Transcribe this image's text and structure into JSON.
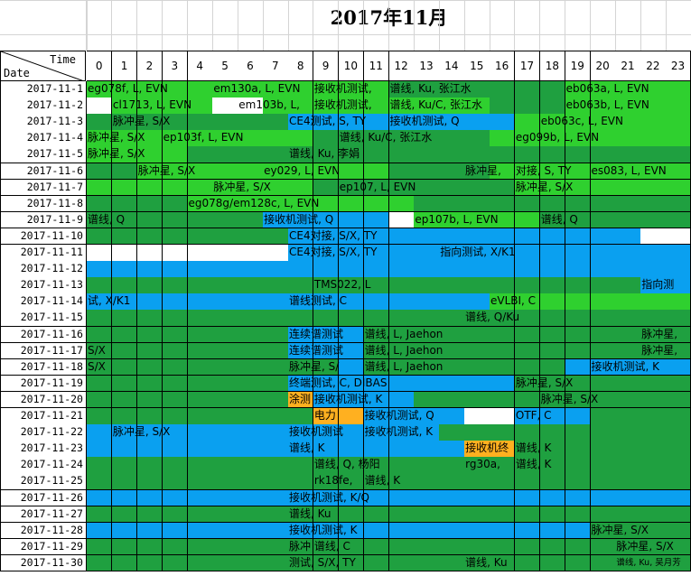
{
  "title": "2017年11月",
  "header": {
    "time_label": "Time",
    "date_label": "Date"
  },
  "colors": {
    "dark_green": "#1fa040",
    "bright_green": "#2fd02f",
    "blue": "#0aa0f0",
    "orange": "#ffb020",
    "white": "#ffffff"
  },
  "hours": [
    "0",
    "1",
    "2",
    "3",
    "4",
    "5",
    "6",
    "7",
    "8",
    "9",
    "10",
    "11",
    "12",
    "13",
    "14",
    "15",
    "16",
    "17",
    "18",
    "19",
    "20",
    "21",
    "22",
    "23"
  ],
  "rows": [
    {
      "date": "2017-11-1",
      "cells": "BBBBBBBBBBBBGGGGGGGBBBBB",
      "events": [
        {
          "s": 0,
          "e": 5,
          "t": "eg078f, L, EVN"
        },
        {
          "s": 5,
          "e": 9,
          "t": "em130a, L, EVN"
        },
        {
          "s": 9,
          "e": 12,
          "t": "接收机测试,"
        },
        {
          "s": 12,
          "e": 19,
          "t": "谱线, Ku, 张江水"
        },
        {
          "s": 19,
          "e": 24,
          "t": "eb063a, L, EVN"
        }
      ]
    },
    {
      "date": "2017-11-2",
      "cells": "WBBBBWWBBBBBBBBBGGGBBBBB",
      "events": [
        {
          "s": 1,
          "e": 6,
          "t": "cl1713, L, EVN"
        },
        {
          "s": 6,
          "e": 9,
          "t": "em103b, L,"
        },
        {
          "s": 9,
          "e": 12,
          "t": "接收机测试,"
        },
        {
          "s": 12,
          "e": 19,
          "t": "谱线, Ku/C, 张江水"
        },
        {
          "s": 19,
          "e": 24,
          "t": "eb063b, L, EVN"
        }
      ]
    },
    {
      "date": "2017-11-3",
      "cells": "GGGGGGGGLLLLLLLLLBBBBBBB",
      "events": [
        {
          "s": 1,
          "e": 8,
          "t": "脉冲星, S/X"
        },
        {
          "s": 8,
          "e": 12,
          "t": "CE4测试, S, TY"
        },
        {
          "s": 12,
          "e": 18,
          "t": "接收机测试, Q"
        },
        {
          "s": 18,
          "e": 24,
          "t": "eb063c, L, EVN"
        }
      ]
    },
    {
      "date": "2017-11-4",
      "cells": "BBBBBBBBBGGGGGGGBBBBBBBB",
      "events": [
        {
          "s": 0,
          "e": 3,
          "t": "脉冲星, S/X"
        },
        {
          "s": 3,
          "e": 9,
          "t": "ep103f, L, EVN"
        },
        {
          "s": 10,
          "e": 16,
          "t": "谱线, Ku/C, 张江水"
        },
        {
          "s": 17,
          "e": 24,
          "t": "eg099b, L, EVN"
        }
      ]
    },
    {
      "date": "2017-11-5",
      "cells": "BBBBGGGGGGGGGGGGGGGGGGGG",
      "events": [
        {
          "s": 0,
          "e": 4,
          "t": "脉冲星, S/X"
        },
        {
          "s": 8,
          "e": 14,
          "t": "谱线, Ku, 李娟"
        }
      ]
    },
    {
      "date": "2017-11-6",
      "cells": "GGBBBBBBBBBBGGGGBBBBBBBB",
      "events": [
        {
          "s": 2,
          "e": 7,
          "t": "脉冲星, S/X"
        },
        {
          "s": 7,
          "e": 12,
          "t": "ey029, L, EVN"
        },
        {
          "s": 15,
          "e": 17,
          "t": "脉冲星,"
        },
        {
          "s": 17,
          "e": 20,
          "t": "对接, S, TY"
        },
        {
          "s": 20,
          "e": 24,
          "t": "es083, L, EVN"
        }
      ]
    },
    {
      "date": "2017-11-7",
      "cells": "BBBBBBBBBGGGGGGGGBBBBBBB",
      "events": [
        {
          "s": 5,
          "e": 9,
          "t": "脉冲星, S/X"
        },
        {
          "s": 10,
          "e": 16,
          "t": "ep107, L, EVN"
        },
        {
          "s": 17,
          "e": 24,
          "t": "脉冲星, S/X"
        }
      ]
    },
    {
      "date": "2017-11-8",
      "cells": "GGGGBBBBBBBBBGGGGGGGGGGG",
      "events": [
        {
          "s": 4,
          "e": 12,
          "t": "eg078g/em128c, L, EVN"
        }
      ]
    },
    {
      "date": "2017-11-9",
      "cells": "GGGGGGGLLLLLWBBBBBGGGGGG",
      "events": [
        {
          "s": 0,
          "e": 4,
          "t": "谱线, Q"
        },
        {
          "s": 7,
          "e": 12,
          "t": "接收机测试, Q"
        },
        {
          "s": 13,
          "e": 18,
          "t": "ep107b, L, EVN"
        },
        {
          "s": 18,
          "e": 24,
          "t": "谱线, Q"
        }
      ]
    },
    {
      "date": "2017-11-10",
      "cells": "GGGGGGGGLLLLLLLLLLLLLLWW",
      "events": [
        {
          "s": 8,
          "e": 14,
          "t": "CE4对接, S/X, TY"
        }
      ]
    },
    {
      "date": "2017-11-11",
      "cells": "WWWWWWWWLLLLLLLLLLLLLLLL",
      "events": [
        {
          "s": 8,
          "e": 14,
          "t": "CE4对接, S/X, TY"
        },
        {
          "s": 14,
          "e": 22,
          "t": "指向测试, X/K1"
        }
      ]
    },
    {
      "date": "2017-11-12",
      "cells": "LLLLLLLLLLLLLLLLLLLLLLLL",
      "events": []
    },
    {
      "date": "2017-11-13",
      "cells": "GGGGGGGGGGGGGGGGGGGGGGLL",
      "events": [
        {
          "s": 9,
          "e": 14,
          "t": "TMS022, L"
        },
        {
          "s": 22,
          "e": 24,
          "t": "指向测"
        }
      ]
    },
    {
      "date": "2017-11-14",
      "cells": "LLLLLLLLLLLLLLLLBBBBBBBB",
      "events": [
        {
          "s": 0,
          "e": 8,
          "t": "试, X/K1"
        },
        {
          "s": 8,
          "e": 14,
          "t": "谱线测试, C"
        },
        {
          "s": 16,
          "e": 22,
          "t": "eVLBI, C"
        }
      ]
    },
    {
      "date": "2017-11-15",
      "cells": "GGGGGGGGGGGGGGGGGGGGGGGG",
      "events": [
        {
          "s": 15,
          "e": 20,
          "t": "谱线, Q/Ku"
        }
      ]
    },
    {
      "date": "2017-11-16",
      "cells": "GGGGGGGGLLLGGGGGGGGGGGGG",
      "events": [
        {
          "s": 8,
          "e": 11,
          "t": "连续谱测试"
        },
        {
          "s": 11,
          "e": 18,
          "t": "谱线, L, Jaehon"
        },
        {
          "s": 22,
          "e": 24,
          "t": "脉冲星,"
        }
      ]
    },
    {
      "date": "2017-11-17",
      "cells": "GGGGGGGGLLLGGGGGGGGGGGGG",
      "events": [
        {
          "s": 0,
          "e": 1,
          "t": "S/X"
        },
        {
          "s": 8,
          "e": 11,
          "t": "连续谱测试"
        },
        {
          "s": 11,
          "e": 18,
          "t": "谱线, L, Jaehon"
        },
        {
          "s": 22,
          "e": 24,
          "t": "脉冲星,"
        }
      ]
    },
    {
      "date": "2017-11-18",
      "cells": "GGGGGGGGGGLGGGGGGGGLLLLL",
      "events": [
        {
          "s": 0,
          "e": 1,
          "t": "S/X"
        },
        {
          "s": 8,
          "e": 11,
          "t": "脉冲星, S/"
        },
        {
          "s": 11,
          "e": 18,
          "t": "谱线, L, Jaehon"
        },
        {
          "s": 20,
          "e": 24,
          "t": "接收机测试, K"
        }
      ]
    },
    {
      "date": "2017-11-19",
      "cells": "GGGGGGGGLLLLLLLLLGGGGGGG",
      "events": [
        {
          "s": 8,
          "e": 14,
          "t": "终端测试, C, DIBAS"
        },
        {
          "s": 17,
          "e": 24,
          "t": "脉冲星, S/X"
        }
      ]
    },
    {
      "date": "2017-11-20",
      "cells": "GGGGGGGGOLLLLGGGGGGGGGGG",
      "events": [
        {
          "s": 8,
          "e": 9,
          "t": "涂测"
        },
        {
          "s": 9,
          "e": 13,
          "t": "接收机测试, K"
        },
        {
          "s": 18,
          "e": 24,
          "t": "脉冲星, S/X"
        }
      ]
    },
    {
      "date": "2017-11-21",
      "cells": "GGGGGGGGGOOLLLLWWLLLGGGG",
      "events": [
        {
          "s": 9,
          "e": 11,
          "t": "电力"
        },
        {
          "s": 11,
          "e": 15,
          "t": "接收机测试, Q"
        },
        {
          "s": 17,
          "e": 20,
          "t": "OTF, C"
        }
      ]
    },
    {
      "date": "2017-11-22",
      "cells": "LLLLLLLLLLLLLLGGGGGGGGGG",
      "events": [
        {
          "s": 1,
          "e": 8,
          "t": "脉冲星, S/X"
        },
        {
          "s": 8,
          "e": 11,
          "t": "接收机测试"
        },
        {
          "s": 11,
          "e": 15,
          "t": "接收机测试, K"
        }
      ]
    },
    {
      "date": "2017-11-23",
      "cells": "LLLLLLLLLLLLLLLOOGGGGGGG",
      "events": [
        {
          "s": 8,
          "e": 14,
          "t": "谱线, K"
        },
        {
          "s": 15,
          "e": 17,
          "t": "接收机终"
        },
        {
          "s": 17,
          "e": 20,
          "t": "谱线, K"
        }
      ]
    },
    {
      "date": "2017-11-24",
      "cells": "GGGGGGGGGGGGGGGGGGGGGGGG",
      "events": [
        {
          "s": 9,
          "e": 14,
          "t": "谱线, Q, 杨阳"
        },
        {
          "s": 15,
          "e": 17,
          "t": "rg30a,"
        },
        {
          "s": 17,
          "e": 20,
          "t": "谱线, K"
        }
      ]
    },
    {
      "date": "2017-11-25",
      "cells": "GGGGGGGGGGGGGGGGGGGGGGGG",
      "events": [
        {
          "s": 9,
          "e": 11,
          "t": "rk18fe,"
        },
        {
          "s": 11,
          "e": 14,
          "t": "谱线, K"
        }
      ]
    },
    {
      "date": "2017-11-26",
      "cells": "LLLLLLLLLLLLLLLLLLLLLLLL",
      "events": [
        {
          "s": 8,
          "e": 14,
          "t": "接收机测试, K/Q"
        }
      ]
    },
    {
      "date": "2017-11-27",
      "cells": "GGGGGGGGGGGGGGGGGGGGGGGG",
      "events": [
        {
          "s": 8,
          "e": 14,
          "t": "谱线, Ku"
        }
      ]
    },
    {
      "date": "2017-11-28",
      "cells": "LLLLLLLLLLLLLLLLLLLLGGGG",
      "events": [
        {
          "s": 8,
          "e": 14,
          "t": "接收机测试, K"
        },
        {
          "s": 20,
          "e": 24,
          "t": "脉冲星, S/X"
        }
      ]
    },
    {
      "date": "2017-11-29",
      "cells": "GGGGGGGGGGGGGGGGGGGGGGGG",
      "events": [
        {
          "s": 8,
          "e": 9,
          "t": "脉冲"
        },
        {
          "s": 9,
          "e": 14,
          "t": "谱线, C"
        },
        {
          "s": 21,
          "e": 24,
          "t": "脉冲星, S/X"
        }
      ]
    },
    {
      "date": "2017-11-30",
      "cells": "GGGGGGGGGGGGGGGGGGGGGGGG",
      "events": [
        {
          "s": 8,
          "e": 14,
          "t": "测试, S/X, TY"
        },
        {
          "s": 15,
          "e": 20,
          "t": "谱线, Ku"
        },
        {
          "s": 21,
          "e": 24,
          "t": "谱线, Ku, 吴月芳",
          "small": true
        }
      ]
    }
  ]
}
